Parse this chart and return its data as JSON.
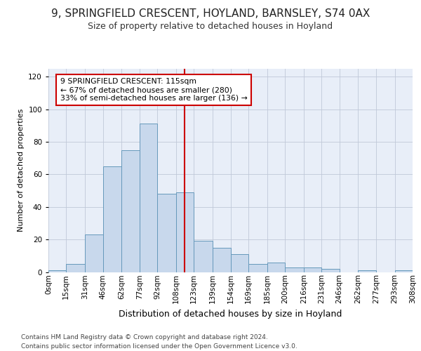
{
  "title": "9, SPRINGFIELD CRESCENT, HOYLAND, BARNSLEY, S74 0AX",
  "subtitle": "Size of property relative to detached houses in Hoyland",
  "xlabel": "Distribution of detached houses by size in Hoyland",
  "ylabel": "Number of detached properties",
  "bar_color": "#c8d8ec",
  "bar_edge_color": "#6699bb",
  "background_color": "#e8eef8",
  "grid_color": "#c0c8d8",
  "property_line_x": 115,
  "property_line_color": "#cc0000",
  "annotation_text": "9 SPRINGFIELD CRESCENT: 115sqm\n← 67% of detached houses are smaller (280)\n33% of semi-detached houses are larger (136) →",
  "annotation_box_color": "#cc0000",
  "bin_edges": [
    0,
    15,
    31,
    46,
    62,
    77,
    92,
    108,
    123,
    139,
    154,
    169,
    185,
    200,
    216,
    231,
    246,
    262,
    277,
    293,
    308
  ],
  "bin_labels": [
    "0sqm",
    "15sqm",
    "31sqm",
    "46sqm",
    "62sqm",
    "77sqm",
    "92sqm",
    "108sqm",
    "123sqm",
    "139sqm",
    "154sqm",
    "169sqm",
    "185sqm",
    "200sqm",
    "216sqm",
    "231sqm",
    "246sqm",
    "262sqm",
    "277sqm",
    "293sqm",
    "308sqm"
  ],
  "bar_heights": [
    1,
    5,
    23,
    65,
    75,
    91,
    48,
    49,
    19,
    15,
    11,
    5,
    6,
    3,
    3,
    2,
    0,
    1,
    0,
    1
  ],
  "ylim": [
    0,
    125
  ],
  "yticks": [
    0,
    20,
    40,
    60,
    80,
    100,
    120
  ],
  "title_fontsize": 11,
  "subtitle_fontsize": 9,
  "ylabel_fontsize": 8,
  "xlabel_fontsize": 9,
  "tick_fontsize": 7.5,
  "footer_line1": "Contains HM Land Registry data © Crown copyright and database right 2024.",
  "footer_line2": "Contains public sector information licensed under the Open Government Licence v3.0."
}
